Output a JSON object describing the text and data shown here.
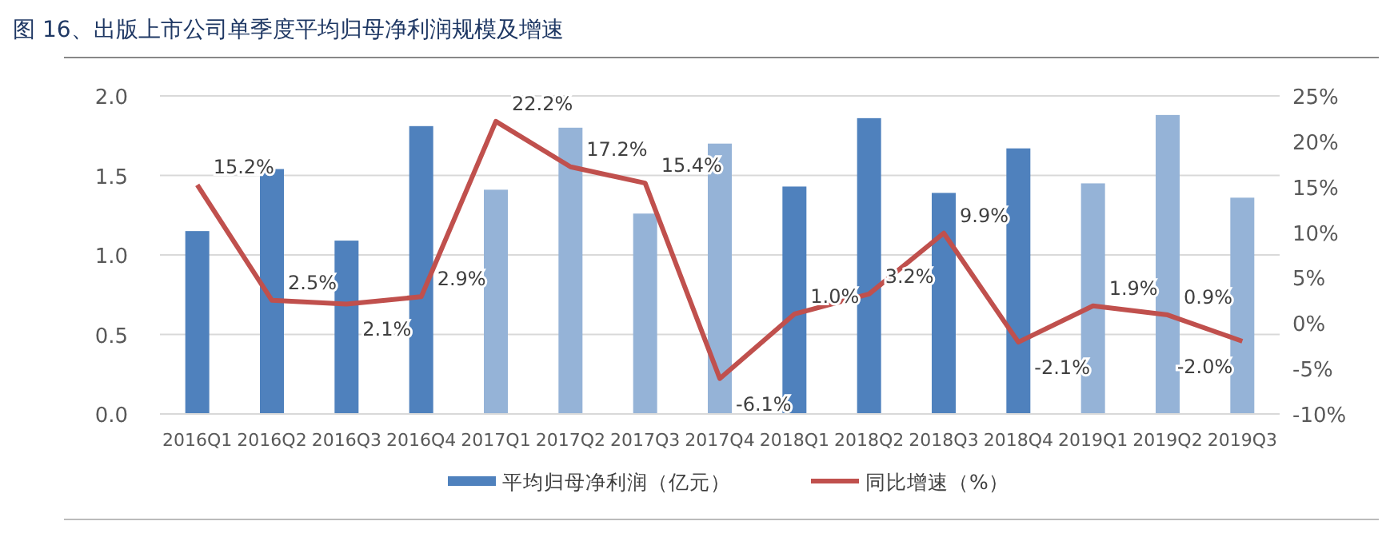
{
  "chart_data": {
    "type": "bar",
    "title": "图 16、出版上市公司单季度平均归母净利润规模及增速",
    "categories": [
      "2016Q1",
      "2016Q2",
      "2016Q3",
      "2016Q4",
      "2017Q1",
      "2017Q2",
      "2017Q3",
      "2017Q4",
      "2018Q1",
      "2018Q2",
      "2018Q3",
      "2018Q4",
      "2019Q1",
      "2019Q2",
      "2019Q3"
    ],
    "series": [
      {
        "name": "平均归母净利润（亿元）",
        "color": "#4f81bd",
        "colors": [
          "#4f81bd",
          "#4f81bd",
          "#4f81bd",
          "#4f81bd",
          "#95b3d7",
          "#95b3d7",
          "#95b3d7",
          "#95b3d7",
          "#4f81bd",
          "#4f81bd",
          "#4f81bd",
          "#4f81bd",
          "#95b3d7",
          "#95b3d7",
          "#95b3d7"
        ],
        "values": [
          1.15,
          1.54,
          1.09,
          1.81,
          1.41,
          1.8,
          1.26,
          1.7,
          1.43,
          1.86,
          1.39,
          1.67,
          1.45,
          1.88,
          1.36
        ]
      },
      {
        "name": "同比增速（%）",
        "type": "line",
        "axis": "y2",
        "color": "#c0504d",
        "values": [
          15.2,
          2.5,
          2.1,
          2.9,
          22.2,
          17.2,
          15.4,
          -6.1,
          1.0,
          3.2,
          9.9,
          -2.1,
          1.9,
          0.9,
          -2.0
        ],
        "value_labels": [
          "15.2%",
          "2.5%",
          "2.1%",
          "2.9%",
          "22.2%",
          "17.2%",
          "15.4%",
          "-6.1%",
          "1.0%",
          "3.2%",
          "9.9%",
          "-2.1%",
          "1.9%",
          "0.9%",
          "-2.0%"
        ]
      }
    ],
    "ylim": [
      0,
      2
    ],
    "yticks": [
      {
        "value": 0,
        "label": "0.0"
      },
      {
        "value": 0.5,
        "label": "0.5"
      },
      {
        "value": 1,
        "label": "1.0"
      },
      {
        "value": 1.5,
        "label": "1.5"
      },
      {
        "value": 2,
        "label": "2.0"
      }
    ],
    "y2lim": [
      -10,
      25
    ],
    "y2ticks": [
      {
        "value": -10,
        "label": "-10%"
      },
      {
        "value": -5,
        "label": "-5%"
      },
      {
        "value": 0,
        "label": "0%"
      },
      {
        "value": 5,
        "label": "5%"
      },
      {
        "value": 10,
        "label": "10%"
      },
      {
        "value": 15,
        "label": "15%"
      },
      {
        "value": 20,
        "label": "20%"
      },
      {
        "value": 25,
        "label": "25%"
      }
    ],
    "grid": "y",
    "legend": "bottom"
  }
}
